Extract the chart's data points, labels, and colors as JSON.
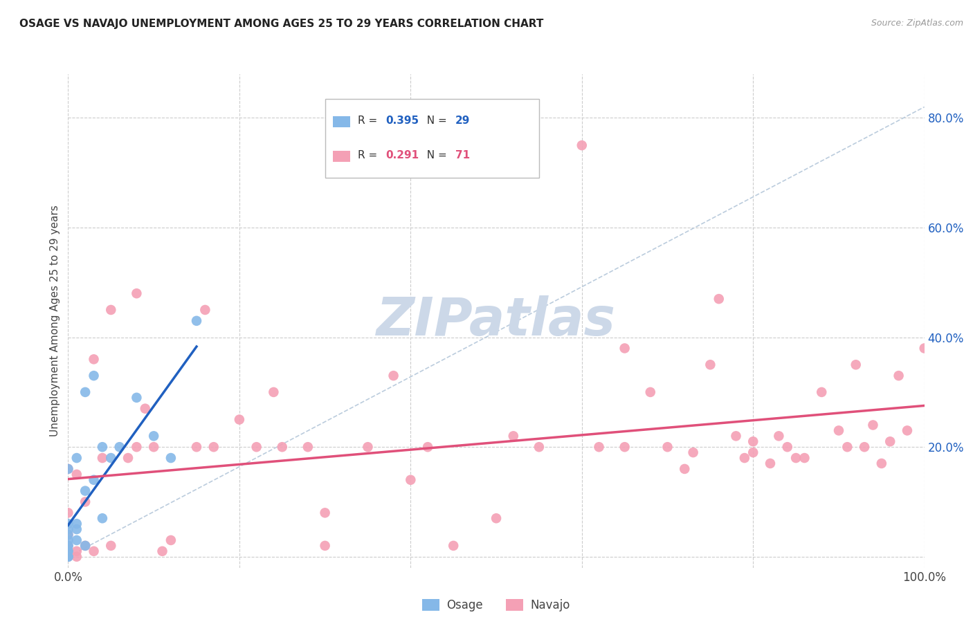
{
  "title": "OSAGE VS NAVAJO UNEMPLOYMENT AMONG AGES 25 TO 29 YEARS CORRELATION CHART",
  "source": "Source: ZipAtlas.com",
  "ylabel": "Unemployment Among Ages 25 to 29 years",
  "xlim": [
    0.0,
    1.0
  ],
  "ylim": [
    -0.02,
    0.88
  ],
  "yticks": [
    0.0,
    0.2,
    0.4,
    0.6,
    0.8
  ],
  "ytick_labels": [
    "",
    "20.0%",
    "40.0%",
    "60.0%",
    "80.0%"
  ],
  "xticks": [
    0.0,
    0.2,
    0.4,
    0.6,
    0.8,
    1.0
  ],
  "xtick_labels": [
    "0.0%",
    "",
    "",
    "",
    "",
    "100.0%"
  ],
  "osage_R": "0.395",
  "osage_N": "29",
  "navajo_R": "0.291",
  "navajo_N": "71",
  "osage_color": "#85b8e8",
  "navajo_color": "#f4a0b5",
  "osage_line_color": "#2060c0",
  "navajo_line_color": "#e0507a",
  "ref_line_color": "#bbccdd",
  "watermark_color": "#ccd8e8",
  "background_color": "#ffffff",
  "grid_color": "#cccccc",
  "r_n_color_blue": "#2060c0",
  "r_n_color_pink": "#e0507a",
  "osage_x": [
    0.0,
    0.0,
    0.0,
    0.0,
    0.0,
    0.0,
    0.0,
    0.0,
    0.0,
    0.0,
    0.0,
    0.0,
    0.01,
    0.01,
    0.01,
    0.01,
    0.02,
    0.02,
    0.02,
    0.03,
    0.03,
    0.04,
    0.04,
    0.05,
    0.06,
    0.08,
    0.1,
    0.12,
    0.15
  ],
  "osage_y": [
    0.0,
    0.0,
    0.0,
    0.01,
    0.01,
    0.02,
    0.02,
    0.03,
    0.04,
    0.05,
    0.06,
    0.16,
    0.03,
    0.05,
    0.06,
    0.18,
    0.02,
    0.12,
    0.3,
    0.14,
    0.33,
    0.07,
    0.2,
    0.18,
    0.2,
    0.29,
    0.22,
    0.18,
    0.43
  ],
  "navajo_x": [
    0.0,
    0.0,
    0.0,
    0.0,
    0.0,
    0.0,
    0.01,
    0.01,
    0.01,
    0.02,
    0.02,
    0.03,
    0.03,
    0.04,
    0.05,
    0.05,
    0.07,
    0.08,
    0.08,
    0.09,
    0.1,
    0.11,
    0.12,
    0.15,
    0.16,
    0.17,
    0.2,
    0.22,
    0.24,
    0.25,
    0.28,
    0.3,
    0.3,
    0.35,
    0.38,
    0.4,
    0.42,
    0.45,
    0.5,
    0.52,
    0.55,
    0.6,
    0.62,
    0.65,
    0.65,
    0.68,
    0.7,
    0.72,
    0.73,
    0.75,
    0.76,
    0.78,
    0.79,
    0.8,
    0.8,
    0.82,
    0.83,
    0.84,
    0.85,
    0.86,
    0.88,
    0.9,
    0.91,
    0.92,
    0.93,
    0.94,
    0.95,
    0.96,
    0.97,
    0.98,
    1.0
  ],
  "navajo_y": [
    0.0,
    0.0,
    0.02,
    0.04,
    0.08,
    0.16,
    0.0,
    0.01,
    0.15,
    0.02,
    0.1,
    0.01,
    0.36,
    0.18,
    0.02,
    0.45,
    0.18,
    0.2,
    0.48,
    0.27,
    0.2,
    0.01,
    0.03,
    0.2,
    0.45,
    0.2,
    0.25,
    0.2,
    0.3,
    0.2,
    0.2,
    0.02,
    0.08,
    0.2,
    0.33,
    0.14,
    0.2,
    0.02,
    0.07,
    0.22,
    0.2,
    0.75,
    0.2,
    0.38,
    0.2,
    0.3,
    0.2,
    0.16,
    0.19,
    0.35,
    0.47,
    0.22,
    0.18,
    0.19,
    0.21,
    0.17,
    0.22,
    0.2,
    0.18,
    0.18,
    0.3,
    0.23,
    0.2,
    0.35,
    0.2,
    0.24,
    0.17,
    0.21,
    0.33,
    0.23,
    0.38
  ]
}
